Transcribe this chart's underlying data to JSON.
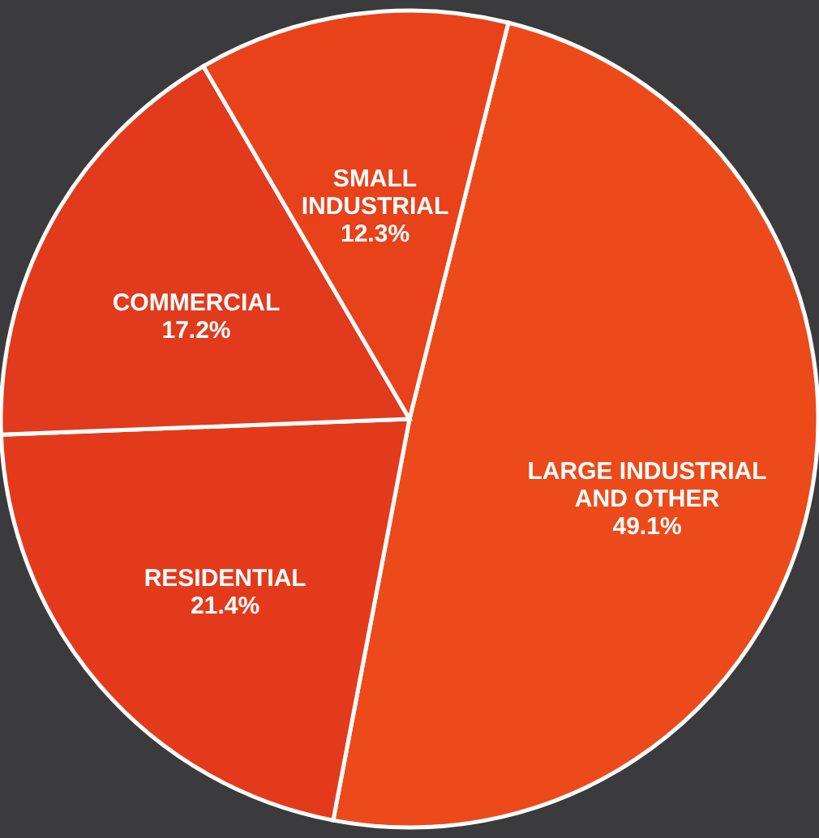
{
  "chart_data": {
    "type": "pie",
    "categories": [
      "LARGE INDUSTRIAL\nAND OTHER",
      "RESIDENTIAL",
      "COMMERCIAL",
      "SMALL\nINDUSTRIAL"
    ],
    "values": [
      49.1,
      21.4,
      17.2,
      12.3
    ],
    "value_labels": [
      "49.1%",
      "21.4%",
      "17.2%",
      "12.3%"
    ],
    "colors": [
      "#ec4a1a",
      "#e43a1c",
      "#e13a1d",
      "#e8421b"
    ],
    "legend": false
  }
}
